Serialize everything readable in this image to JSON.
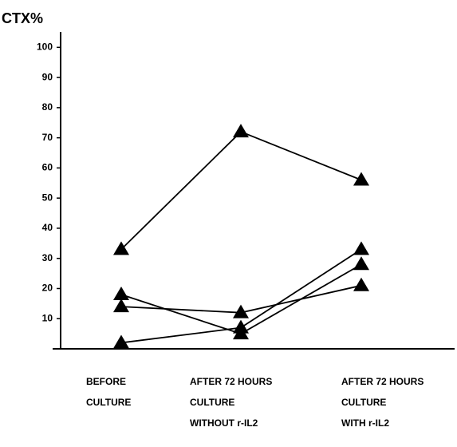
{
  "chart_data": {
    "type": "line",
    "y_label": "CTX%",
    "categories": [
      [
        "BEFORE",
        "CULTURE"
      ],
      [
        "AFTER 72 HOURS",
        "CULTURE",
        "WITHOUT r-IL2"
      ],
      [
        "AFTER 72 HOURS",
        "CULTURE",
        "WITH r-IL2"
      ]
    ],
    "series": [
      {
        "color": "#000000",
        "values": [
          33,
          72,
          56
        ]
      },
      {
        "color": "#000000",
        "values": [
          18,
          5,
          28
        ]
      },
      {
        "color": "#000000",
        "values": [
          14,
          12,
          21
        ]
      },
      {
        "color": "#000000",
        "values": [
          2,
          7,
          33
        ]
      }
    ],
    "ylim": [
      0,
      103
    ],
    "yticks": [
      10,
      20,
      30,
      40,
      50,
      60,
      70,
      80,
      90,
      100
    ],
    "marker": "triangle"
  }
}
